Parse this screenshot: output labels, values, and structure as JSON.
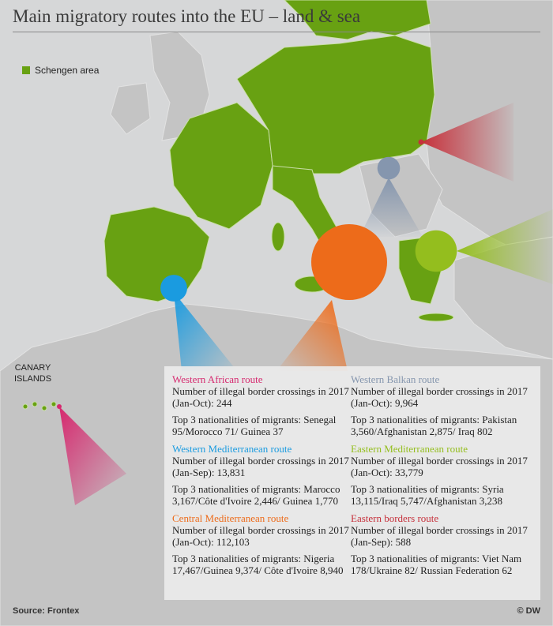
{
  "title": "Main migratory routes into the EU – land & sea",
  "legend": {
    "label": "Schengen area"
  },
  "labels": {
    "canary_line1": "CANARY",
    "canary_line2": "ISLANDS"
  },
  "colors": {
    "schengen": "#68a112",
    "other_land": "#c4c4c4",
    "sea": "#d6d7d8",
    "western_african": "#d6286e",
    "western_mediterranean": "#1a9be0",
    "central_mediterranean": "#ed6b1a",
    "western_balkan": "#8596ae",
    "eastern_mediterranean": "#94be1e",
    "eastern_borders": "#c6303b"
  },
  "routes": [
    {
      "id": "western_african",
      "name": "Western African route",
      "crossings_label": "Number of illegal border crossings in 2017 (Jan-Oct): 244",
      "nationalities": "Top 3 nationalities of migrants: Senegal 95/Morocco 71/ Guinea 37",
      "crossings": 244
    },
    {
      "id": "western_mediterranean",
      "name": "Western Mediterranean route",
      "crossings_label": "Number of illegal border crossings in 2017 (Jan-Sep): 13,831",
      "nationalities": "Top 3 nationalities of migrants: Marocco 3,167/Côte d'Ivoire 2,446/ Guinea 1,770",
      "crossings": 13831
    },
    {
      "id": "central_mediterranean",
      "name": "Central Mediterranean route",
      "crossings_label": "Number of illegal border crossings in 2017 (Jan-Oct): 112,103",
      "nationalities": "Top 3 nationalities of migrants: Nigeria 17,467/Guinea 9,374/ Côte d'Ivoire 8,940",
      "crossings": 112103
    },
    {
      "id": "western_balkan",
      "name": "Western Balkan route",
      "crossings_label": "Number of illegal border crossings in 2017 (Jan-Oct): 9,964",
      "nationalities": "Top 3 nationalities of migrants: Pakistan 3,560/Afghanistan 2,875/ Iraq 802",
      "crossings": 9964
    },
    {
      "id": "eastern_mediterranean",
      "name": "Eastern Mediterranean route",
      "crossings_label": "Number of illegal border crossings in 2017 (Jan-Oct): 33,779",
      "nationalities": "Top 3 nationalities of migrants: Syria 13,115/Iraq 5,747/Afghanistan 3,238",
      "crossings": 33779
    },
    {
      "id": "eastern_borders",
      "name": "Eastern borders route",
      "crossings_label": "Number of illegal border crossings in 2017 (Jan-Sep): 588",
      "nationalities": "Top 3 nationalities of migrants: Viet Nam 178/Ukraine 82/ Russian Federation 62",
      "crossings": 588
    }
  ],
  "footer": {
    "source": "Source: Frontex",
    "credit": "© DW"
  }
}
